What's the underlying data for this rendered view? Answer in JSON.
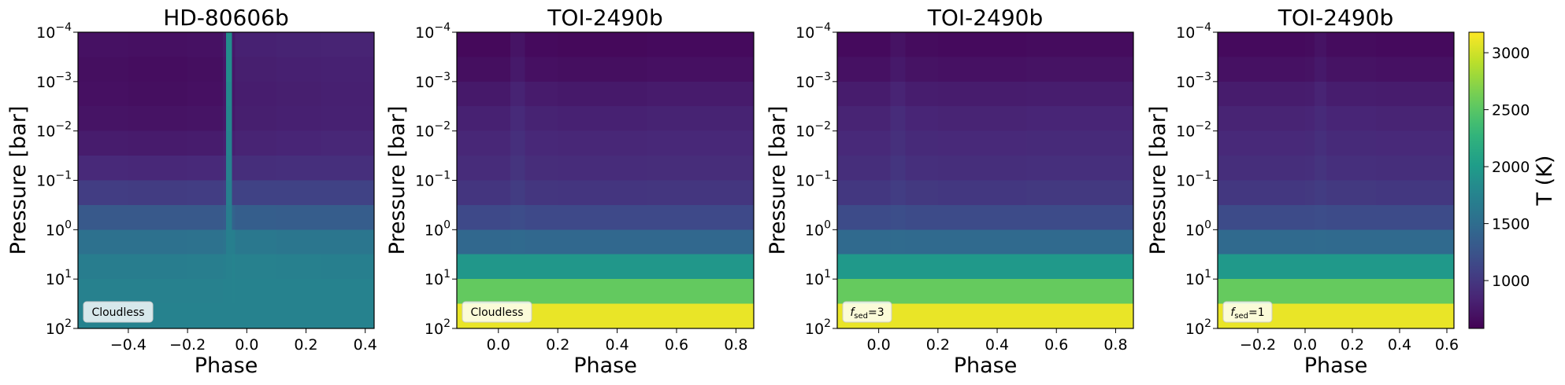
{
  "chart_data": [
    {
      "type": "heatmap",
      "title": "HD-80606b",
      "xlabel": "Phase",
      "ylabel": "Pressure [bar]",
      "colormap": "viridis",
      "log_y": true,
      "annotation": {
        "text": "Cloudless"
      },
      "xlim": [
        -0.57,
        0.43
      ],
      "xticks": [
        {
          "value": -0.4,
          "label": "−0.4"
        },
        {
          "value": -0.2,
          "label": "−0.2"
        },
        {
          "value": 0,
          "label": "0.0"
        },
        0.2,
        0.4
      ],
      "ylim": [
        100,
        0.0001
      ],
      "yticks": [
        {
          "value": 100,
          "label": "10",
          "exp": "2"
        },
        {
          "value": 10,
          "label": "10",
          "exp": "1"
        },
        {
          "value": 1,
          "label": "10",
          "exp": "0"
        },
        {
          "value": 0.1,
          "label": "10",
          "exp": "−1"
        },
        {
          "value": 0.01,
          "label": "10",
          "exp": "−2"
        },
        {
          "value": 0.001,
          "label": "10",
          "exp": "−3"
        },
        {
          "value": 0.0001,
          "label": "10",
          "exp": "−4"
        }
      ],
      "x_bins": [
        -0.57,
        -0.4,
        -0.2,
        -0.08,
        -0.07,
        -0.05,
        -0.04,
        0.1,
        0.25,
        0.43
      ],
      "y_bins": [
        0.0001,
        0.000316,
        0.001,
        0.00316,
        0.01,
        0.0316,
        0.1,
        0.316,
        1,
        3.16,
        10,
        31.6,
        100
      ],
      "z": [
        [
          700,
          690,
          700,
          760,
          1850,
          760,
          820,
          830,
          840
        ],
        [
          680,
          670,
          680,
          740,
          1850,
          740,
          800,
          810,
          820
        ],
        [
          690,
          680,
          690,
          740,
          1800,
          740,
          790,
          800,
          810
        ],
        [
          720,
          710,
          720,
          760,
          1780,
          760,
          800,
          810,
          820
        ],
        [
          780,
          770,
          780,
          810,
          1750,
          810,
          840,
          850,
          860
        ],
        [
          880,
          870,
          880,
          900,
          1720,
          900,
          920,
          930,
          930
        ],
        [
          1050,
          1040,
          1050,
          1070,
          1700,
          1080,
          1090,
          1090,
          1090
        ],
        [
          1300,
          1300,
          1300,
          1320,
          1680,
          1400,
          1350,
          1340,
          1340
        ],
        [
          1550,
          1550,
          1560,
          1580,
          1700,
          1700,
          1620,
          1600,
          1600
        ],
        [
          1680,
          1680,
          1690,
          1700,
          1720,
          1750,
          1720,
          1710,
          1700
        ],
        [
          1720,
          1720,
          1720,
          1730,
          1740,
          1750,
          1740,
          1730,
          1730
        ],
        [
          1730,
          1730,
          1730,
          1730,
          1740,
          1740,
          1740,
          1740,
          1740
        ]
      ]
    },
    {
      "type": "heatmap",
      "title": "TOI-2490b",
      "xlabel": "Phase",
      "ylabel": "Pressure [bar]",
      "colormap": "viridis",
      "log_y": true,
      "annotation": {
        "text": "Cloudless"
      },
      "xlim": [
        -0.14,
        0.86
      ],
      "xticks": [
        {
          "value": 0,
          "label": "0.0"
        },
        0.2,
        0.4,
        0.6,
        0.8
      ],
      "ylim": [
        100,
        0.0001
      ],
      "yticks": [
        {
          "value": 100,
          "label": "10",
          "exp": "2"
        },
        {
          "value": 10,
          "label": "10",
          "exp": "1"
        },
        {
          "value": 1,
          "label": "10",
          "exp": "0"
        },
        {
          "value": 0.1,
          "label": "10",
          "exp": "−1"
        },
        {
          "value": 0.01,
          "label": "10",
          "exp": "−2"
        },
        {
          "value": 0.001,
          "label": "10",
          "exp": "−3"
        },
        {
          "value": 0.0001,
          "label": "10",
          "exp": "−4"
        }
      ],
      "x_bins": [
        -0.14,
        0.0,
        0.04,
        0.09,
        0.2,
        0.5,
        0.86
      ],
      "y_bins": [
        0.0001,
        0.000316,
        0.001,
        0.00316,
        0.01,
        0.0316,
        0.1,
        0.316,
        1,
        3.16,
        10,
        31.6,
        100
      ],
      "z": [
        [
          640,
          640,
          720,
          650,
          640,
          650
        ],
        [
          680,
          680,
          760,
          690,
          680,
          690
        ],
        [
          760,
          760,
          830,
          770,
          760,
          770
        ],
        [
          820,
          820,
          890,
          830,
          820,
          830
        ],
        [
          860,
          860,
          930,
          870,
          860,
          870
        ],
        [
          900,
          900,
          970,
          910,
          900,
          910
        ],
        [
          980,
          980,
          1040,
          990,
          980,
          990
        ],
        [
          1150,
          1150,
          1190,
          1150,
          1150,
          1150
        ],
        [
          1450,
          1450,
          1470,
          1450,
          1450,
          1450
        ],
        [
          1950,
          1950,
          1950,
          1950,
          1950,
          1950
        ],
        [
          2550,
          2550,
          2550,
          2550,
          2550,
          2550
        ],
        [
          3100,
          3100,
          3100,
          3100,
          3100,
          3100
        ]
      ]
    },
    {
      "type": "heatmap",
      "title": "TOI-2490b",
      "xlabel": "Phase",
      "ylabel": "Pressure [bar]",
      "colormap": "viridis",
      "log_y": true,
      "annotation": {
        "text": "f",
        "sub": "sed",
        "tail": "=3"
      },
      "xlim": [
        -0.14,
        0.86
      ],
      "xticks": [
        {
          "value": 0,
          "label": "0.0"
        },
        0.2,
        0.4,
        0.6,
        0.8
      ],
      "ylim": [
        100,
        0.0001
      ],
      "yticks": [
        {
          "value": 100,
          "label": "10",
          "exp": "2"
        },
        {
          "value": 10,
          "label": "10",
          "exp": "1"
        },
        {
          "value": 1,
          "label": "10",
          "exp": "0"
        },
        {
          "value": 0.1,
          "label": "10",
          "exp": "−1"
        },
        {
          "value": 0.01,
          "label": "10",
          "exp": "−2"
        },
        {
          "value": 0.001,
          "label": "10",
          "exp": "−3"
        },
        {
          "value": 0.0001,
          "label": "10",
          "exp": "−4"
        }
      ],
      "x_bins": [
        -0.14,
        0.0,
        0.04,
        0.09,
        0.2,
        0.5,
        0.86
      ],
      "y_bins": [
        0.0001,
        0.000316,
        0.001,
        0.00316,
        0.01,
        0.0316,
        0.1,
        0.316,
        1,
        3.16,
        10,
        31.6,
        100
      ],
      "z": [
        [
          650,
          650,
          710,
          660,
          650,
          660
        ],
        [
          700,
          700,
          760,
          710,
          700,
          710
        ],
        [
          780,
          780,
          840,
          790,
          780,
          790
        ],
        [
          840,
          840,
          900,
          850,
          840,
          850
        ],
        [
          880,
          880,
          940,
          890,
          880,
          890
        ],
        [
          920,
          920,
          980,
          930,
          920,
          930
        ],
        [
          1000,
          1000,
          1050,
          1010,
          1000,
          1010
        ],
        [
          1170,
          1170,
          1200,
          1170,
          1170,
          1170
        ],
        [
          1470,
          1470,
          1480,
          1470,
          1470,
          1470
        ],
        [
          1970,
          1970,
          1970,
          1970,
          1970,
          1970
        ],
        [
          2560,
          2560,
          2560,
          2560,
          2560,
          2560
        ],
        [
          3100,
          3100,
          3100,
          3100,
          3100,
          3100
        ]
      ]
    },
    {
      "type": "heatmap",
      "title": "TOI-2490b",
      "xlabel": "Phase",
      "ylabel": "Pressure [bar]",
      "colormap": "viridis",
      "log_y": true,
      "annotation": {
        "text": "f",
        "sub": "sed",
        "tail": "=1"
      },
      "xlim": [
        -0.37,
        0.63
      ],
      "xticks": [
        {
          "value": -0.2,
          "label": "−0.2"
        },
        {
          "value": 0,
          "label": "0.0"
        },
        0.2,
        0.4,
        0.6
      ],
      "ylim": [
        100,
        0.0001
      ],
      "yticks": [
        {
          "value": 100,
          "label": "10",
          "exp": "2"
        },
        {
          "value": 10,
          "label": "10",
          "exp": "1"
        },
        {
          "value": 1,
          "label": "10",
          "exp": "0"
        },
        {
          "value": 0.1,
          "label": "10",
          "exp": "−1"
        },
        {
          "value": 0.01,
          "label": "10",
          "exp": "−2"
        },
        {
          "value": 0.001,
          "label": "10",
          "exp": "−3"
        },
        {
          "value": 0.0001,
          "label": "10",
          "exp": "−4"
        }
      ],
      "x_bins": [
        -0.37,
        -0.2,
        0.0,
        0.04,
        0.09,
        0.3,
        0.63
      ],
      "y_bins": [
        0.0001,
        0.000316,
        0.001,
        0.00316,
        0.01,
        0.0316,
        0.1,
        0.316,
        1,
        3.16,
        10,
        31.6,
        100
      ],
      "z": [
        [
          650,
          650,
          660,
          710,
          660,
          650
        ],
        [
          700,
          700,
          710,
          760,
          710,
          700
        ],
        [
          780,
          780,
          790,
          840,
          790,
          780
        ],
        [
          840,
          840,
          850,
          890,
          850,
          840
        ],
        [
          880,
          880,
          890,
          930,
          890,
          880
        ],
        [
          920,
          920,
          930,
          970,
          930,
          920
        ],
        [
          1000,
          1000,
          1010,
          1040,
          1010,
          1000
        ],
        [
          1170,
          1170,
          1170,
          1190,
          1170,
          1170
        ],
        [
          1470,
          1470,
          1470,
          1480,
          1470,
          1470
        ],
        [
          1970,
          1970,
          1970,
          1970,
          1970,
          1970
        ],
        [
          2560,
          2560,
          2560,
          2560,
          2560,
          2560
        ],
        [
          3100,
          3100,
          3100,
          3100,
          3100,
          3100
        ]
      ]
    }
  ],
  "colorbar": {
    "label": "T (K)",
    "colormap": "viridis",
    "clim": [
      580,
      3180
    ],
    "ticks": [
      1000,
      1500,
      2000,
      2500,
      3000
    ]
  }
}
